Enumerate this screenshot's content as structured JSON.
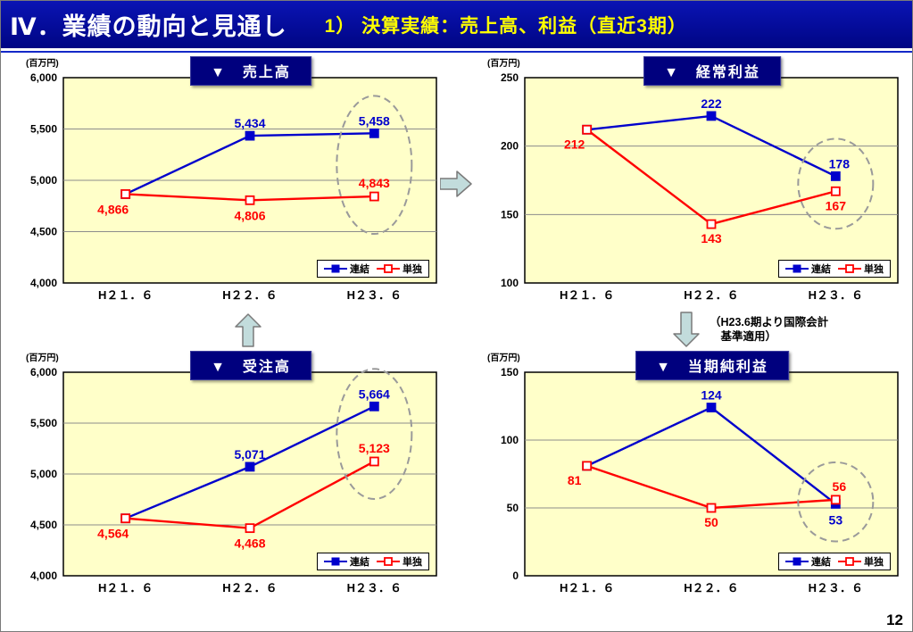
{
  "header": {
    "title": "Ⅳ．業績の動向と見通し",
    "subtitle": "1） 決算実績：売上高、利益（直近3期）"
  },
  "page_number": "12",
  "annotation": {
    "text": "（H23.6期より国際会計\n　基準適用）"
  },
  "legend": {
    "consolidated": "連結",
    "standalone": "単独"
  },
  "colors": {
    "consolidated": "#0000CC",
    "standalone": "#FF0000",
    "plot_bg": "#FFFFC9",
    "header_bg": "#000896",
    "subtitle": "#FFFF00",
    "title_box_bg": "#00007E",
    "highlight": "#9A9A9A"
  },
  "chart_data": [
    {
      "type": "line",
      "title": "▼　売上高",
      "unit": "(百万円)",
      "categories": [
        "H２１．６",
        "H２２．６",
        "H２３．６"
      ],
      "ylim": [
        4000,
        6000
      ],
      "yticks": [
        {
          "value": 4000,
          "label": "4,000"
        },
        {
          "value": 4500,
          "label": "4,500"
        },
        {
          "value": 5000,
          "label": "5,000"
        },
        {
          "value": 5500,
          "label": "5,500"
        },
        {
          "value": 6000,
          "label": "6,000"
        }
      ],
      "series": [
        {
          "key": "consolidated",
          "name": "連結",
          "color": "#0000CC",
          "marker": "filled-square",
          "values": [
            4866,
            5434,
            5458
          ],
          "point_labels": [
            {
              "text": ""
            },
            {
              "text": "5,434",
              "dx": 0,
              "dy": -9
            },
            {
              "text": "5,458",
              "dx": 0,
              "dy": -9
            }
          ]
        },
        {
          "key": "standalone",
          "name": "単独",
          "color": "#FF0000",
          "marker": "open-square",
          "values": [
            4866,
            4806,
            4843
          ],
          "point_labels": [
            {
              "text": "4,866",
              "dx": -14,
              "dy": 22
            },
            {
              "text": "4,806",
              "dx": 0,
              "dy": 22
            },
            {
              "text": "4,843",
              "dx": 0,
              "dy": -10
            }
          ]
        }
      ],
      "highlight_last_points": true,
      "legend_position": "bottom-right"
    },
    {
      "type": "line",
      "title": "▼　経常利益",
      "unit": "(百万円)",
      "categories": [
        "H２１．６",
        "H２２．６",
        "H２３．６"
      ],
      "ylim": [
        100,
        250
      ],
      "yticks": [
        {
          "value": 100,
          "label": "100"
        },
        {
          "value": 150,
          "label": "150"
        },
        {
          "value": 200,
          "label": "200"
        },
        {
          "value": 250,
          "label": "250"
        }
      ],
      "series": [
        {
          "key": "consolidated",
          "name": "連結",
          "color": "#0000CC",
          "marker": "filled-square",
          "values": [
            212,
            222,
            178
          ],
          "point_labels": [
            {
              "text": ""
            },
            {
              "text": "222",
              "dx": 0,
              "dy": -9
            },
            {
              "text": "178",
              "dx": 4,
              "dy": -9
            }
          ]
        },
        {
          "key": "standalone",
          "name": "単独",
          "color": "#FF0000",
          "marker": "open-square",
          "values": [
            212,
            143,
            167
          ],
          "point_labels": [
            {
              "text": "212",
              "dx": -14,
              "dy": 21
            },
            {
              "text": "143",
              "dx": 0,
              "dy": 21
            },
            {
              "text": "167",
              "dx": 0,
              "dy": 21
            }
          ]
        }
      ],
      "highlight_last_points": true,
      "legend_position": "bottom-right"
    },
    {
      "type": "line",
      "title": "▼　受注高",
      "unit": "(百万円)",
      "categories": [
        "H２１．６",
        "H２２．６",
        "H２３．６"
      ],
      "ylim": [
        4000,
        6000
      ],
      "yticks": [
        {
          "value": 4000,
          "label": "4,000"
        },
        {
          "value": 4500,
          "label": "4,500"
        },
        {
          "value": 5000,
          "label": "5,000"
        },
        {
          "value": 5500,
          "label": "5,500"
        },
        {
          "value": 6000,
          "label": "6,000"
        }
      ],
      "series": [
        {
          "key": "consolidated",
          "name": "連結",
          "color": "#0000CC",
          "marker": "filled-square",
          "values": [
            4564,
            5071,
            5664
          ],
          "point_labels": [
            {
              "text": ""
            },
            {
              "text": "5,071",
              "dx": 0,
              "dy": -9
            },
            {
              "text": "5,664",
              "dx": 0,
              "dy": -9
            }
          ]
        },
        {
          "key": "standalone",
          "name": "単独",
          "color": "#FF0000",
          "marker": "open-square",
          "values": [
            4564,
            4468,
            5123
          ],
          "point_labels": [
            {
              "text": "4,564",
              "dx": -14,
              "dy": 22
            },
            {
              "text": "4,468",
              "dx": 0,
              "dy": 22
            },
            {
              "text": "5,123",
              "dx": 0,
              "dy": -10
            }
          ]
        }
      ],
      "highlight_last_points": true,
      "legend_position": "bottom-right"
    },
    {
      "type": "line",
      "title": "▼　当期純利益",
      "unit": "(百万円)",
      "categories": [
        "H２１．６",
        "H２２．６",
        "H２３．６"
      ],
      "ylim": [
        0,
        150
      ],
      "yticks": [
        {
          "value": 0,
          "label": "0"
        },
        {
          "value": 50,
          "label": "50"
        },
        {
          "value": 100,
          "label": "100"
        },
        {
          "value": 150,
          "label": "150"
        }
      ],
      "series": [
        {
          "key": "consolidated",
          "name": "連結",
          "color": "#0000CC",
          "marker": "filled-square",
          "values": [
            81,
            124,
            53
          ],
          "point_labels": [
            {
              "text": ""
            },
            {
              "text": "124",
              "dx": 0,
              "dy": -9
            },
            {
              "text": "53",
              "dx": 0,
              "dy": 23
            }
          ]
        },
        {
          "key": "standalone",
          "name": "単独",
          "color": "#FF0000",
          "marker": "open-square",
          "values": [
            81,
            50,
            56
          ],
          "point_labels": [
            {
              "text": "81",
              "dx": -14,
              "dy": 21
            },
            {
              "text": "50",
              "dx": 0,
              "dy": 21
            },
            {
              "text": "56",
              "dx": 4,
              "dy": -10
            }
          ]
        }
      ],
      "highlight_last_points": true,
      "legend_position": "bottom-right"
    }
  ]
}
